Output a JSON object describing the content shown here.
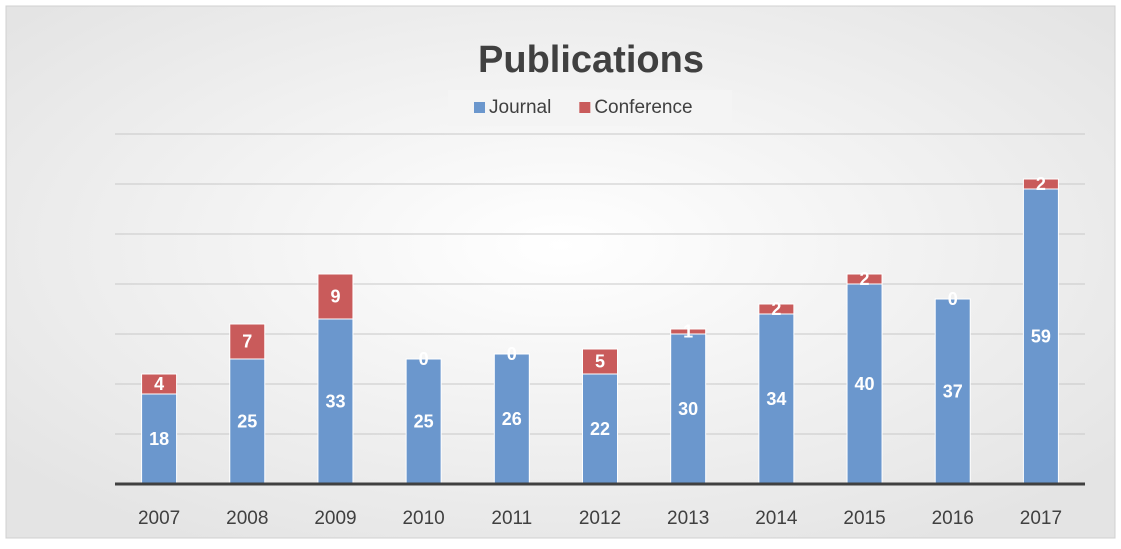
{
  "chart_data": {
    "type": "stacked_bar",
    "title": "Publications",
    "categories": [
      "2007",
      "2008",
      "2009",
      "2010",
      "2011",
      "2012",
      "2013",
      "2014",
      "2015",
      "2016",
      "2017"
    ],
    "series": [
      {
        "name": "Journal",
        "color": "#6b97cd",
        "values": [
          18,
          25,
          33,
          25,
          26,
          22,
          30,
          34,
          40,
          37,
          59
        ]
      },
      {
        "name": "Conference",
        "color": "#c95b5b",
        "values": [
          4,
          7,
          9,
          0,
          0,
          5,
          1,
          2,
          2,
          0,
          2
        ]
      }
    ],
    "ylim": [
      0,
      70
    ],
    "yticks": [
      0,
      10,
      20,
      30,
      40,
      50,
      60,
      70
    ],
    "grid": true,
    "legend": "top"
  }
}
